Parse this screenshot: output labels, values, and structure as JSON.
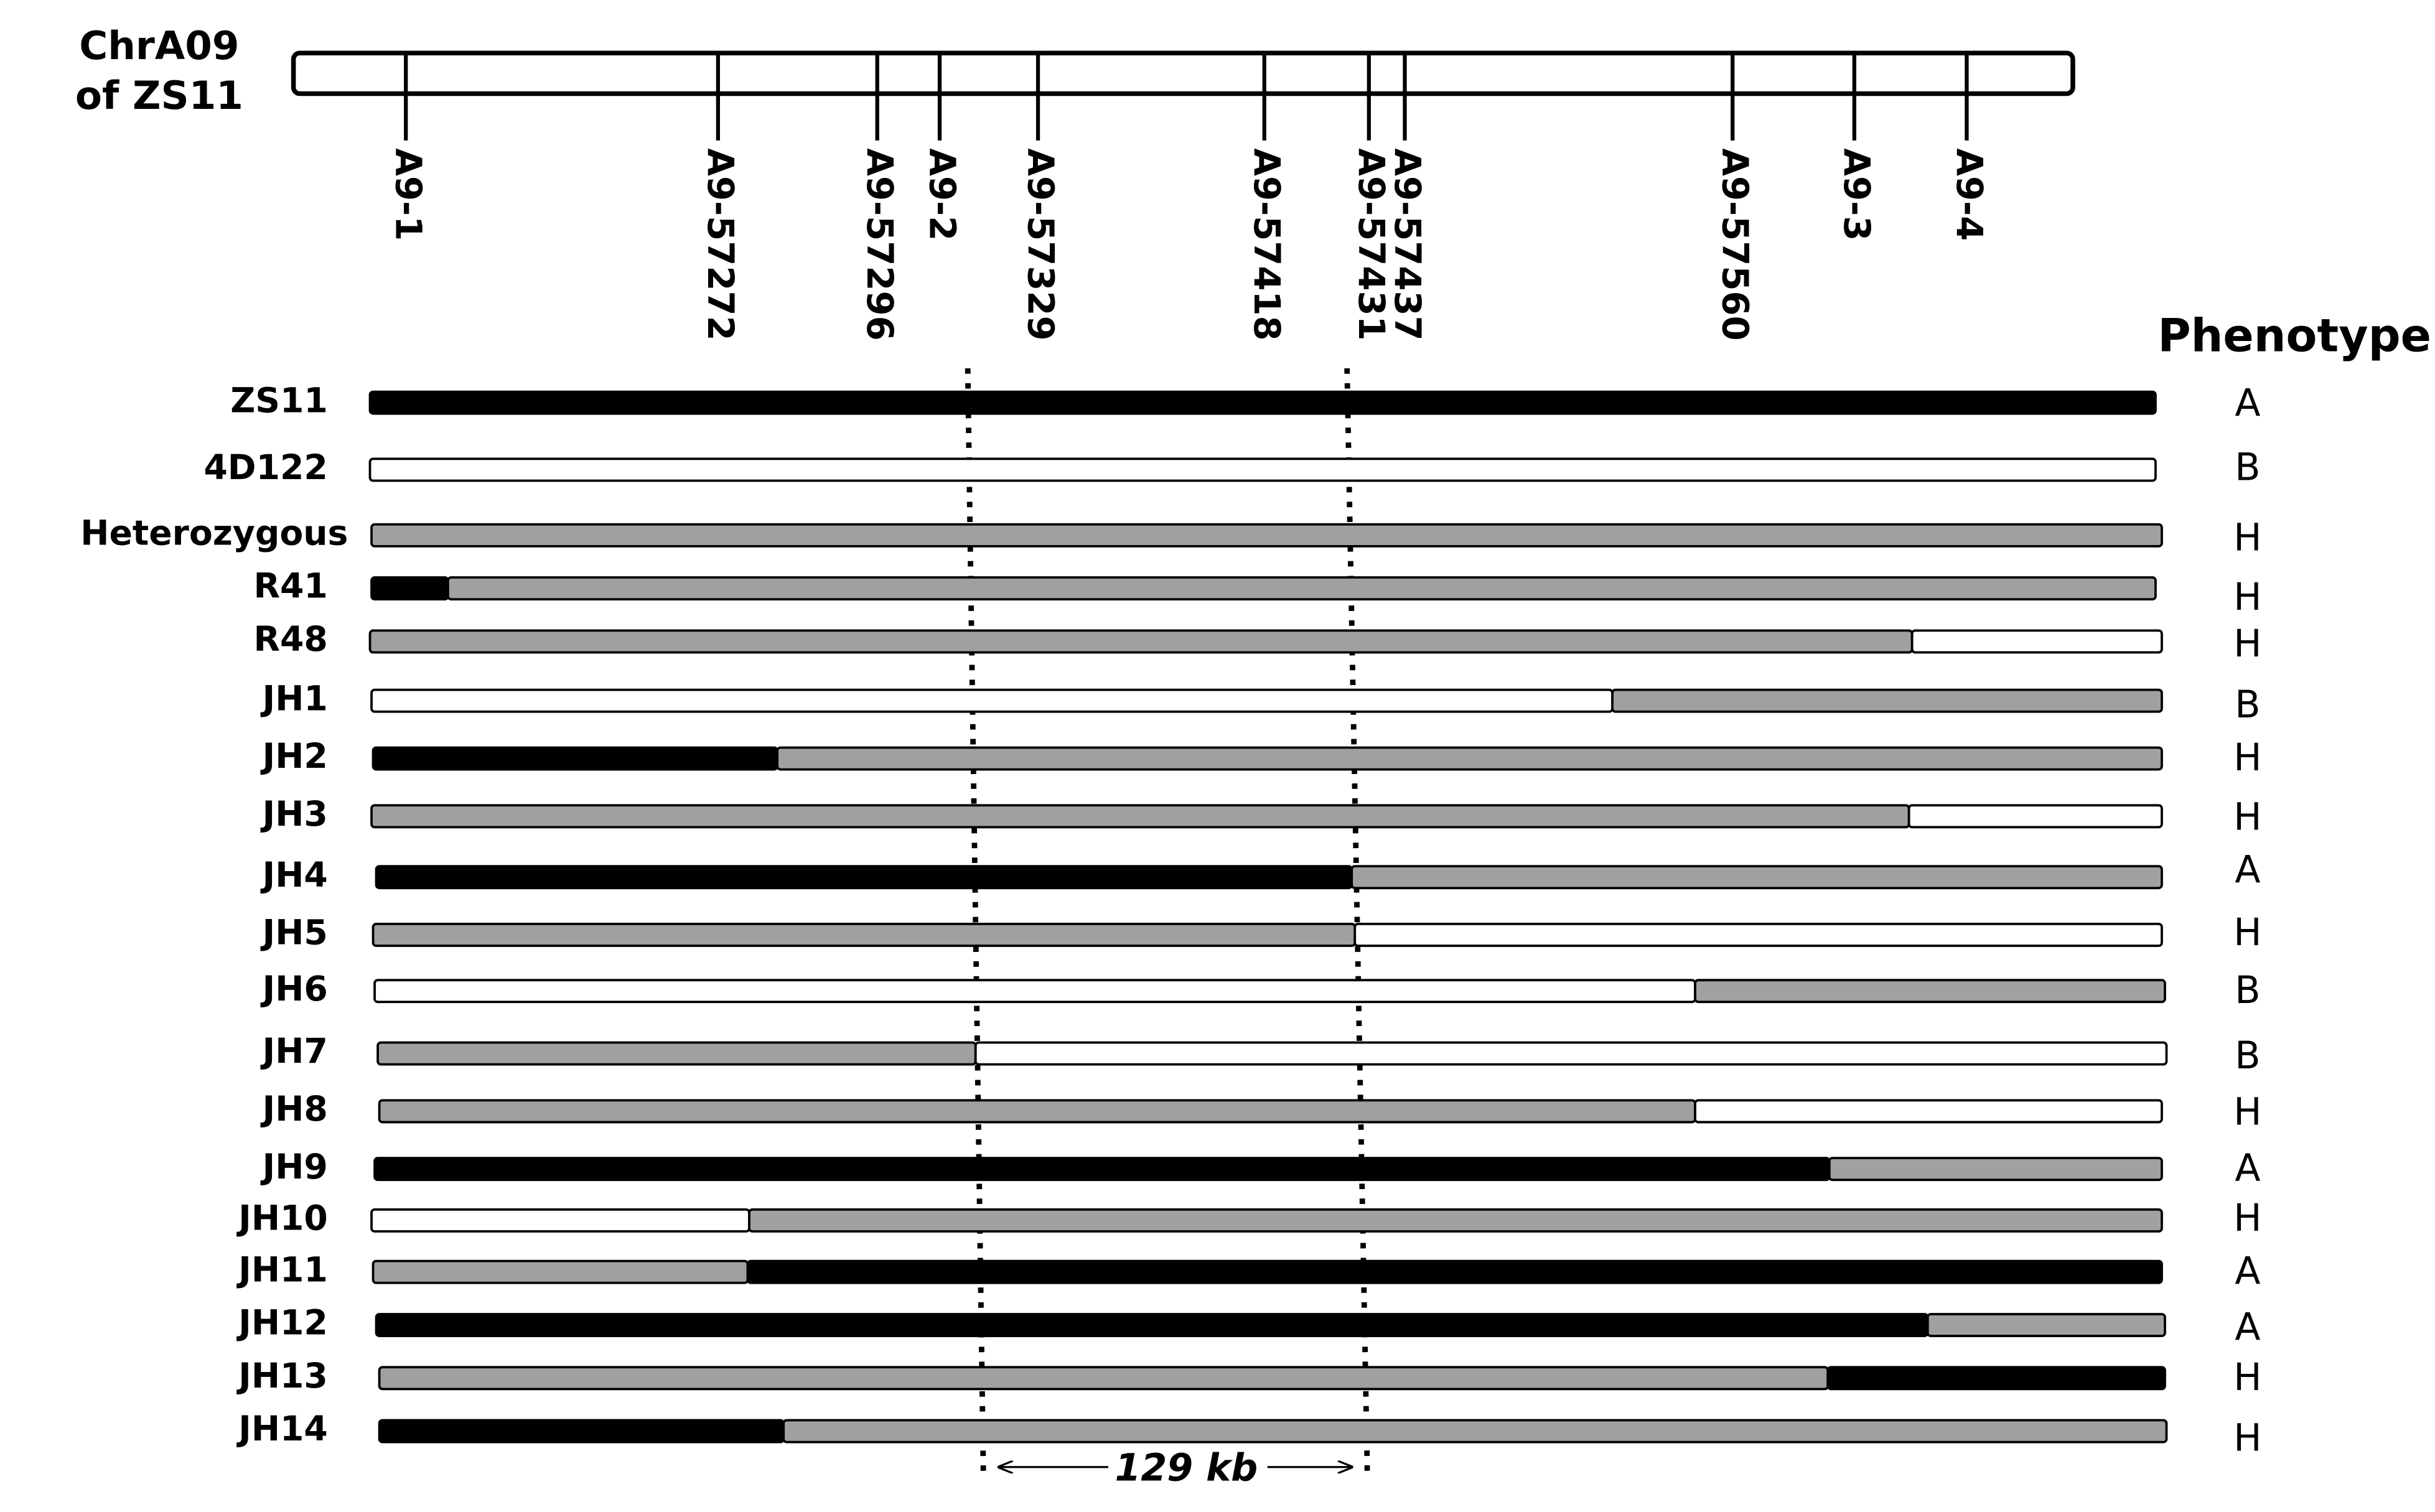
{
  "chromosome_label": [
    "ChrA09",
    "of ZS11"
  ],
  "markers": [
    "A9-1",
    "A9-57272",
    "A9-57296",
    "A9-2",
    "A9-57329",
    "A9-57418",
    "A9-57431",
    "A9-57437",
    "A9-57560",
    "A9-3",
    "A9-4"
  ],
  "phenotype_header": "Phenotype",
  "rows": [
    {
      "name": "ZS11",
      "phenotype": "A"
    },
    {
      "name": "4D122",
      "phenotype": "B"
    },
    {
      "name": "Heterozygous",
      "phenotype": "H"
    },
    {
      "name": "R41",
      "phenotype": "H"
    },
    {
      "name": "R48",
      "phenotype": "H"
    },
    {
      "name": "JH1",
      "phenotype": "B"
    },
    {
      "name": "JH2",
      "phenotype": "H"
    },
    {
      "name": "JH3",
      "phenotype": "H"
    },
    {
      "name": "JH4",
      "phenotype": "A"
    },
    {
      "name": "JH5",
      "phenotype": "H"
    },
    {
      "name": "JH6",
      "phenotype": "B"
    },
    {
      "name": "JH7",
      "phenotype": "B"
    },
    {
      "name": "JH8",
      "phenotype": "H"
    },
    {
      "name": "JH9",
      "phenotype": "A"
    },
    {
      "name": "JH10",
      "phenotype": "H"
    },
    {
      "name": "JH11",
      "phenotype": "A"
    },
    {
      "name": "JH12",
      "phenotype": "A"
    },
    {
      "name": "JH13",
      "phenotype": "H"
    },
    {
      "name": "JH14",
      "phenotype": "H"
    }
  ],
  "interval_label": "129 kb"
}
